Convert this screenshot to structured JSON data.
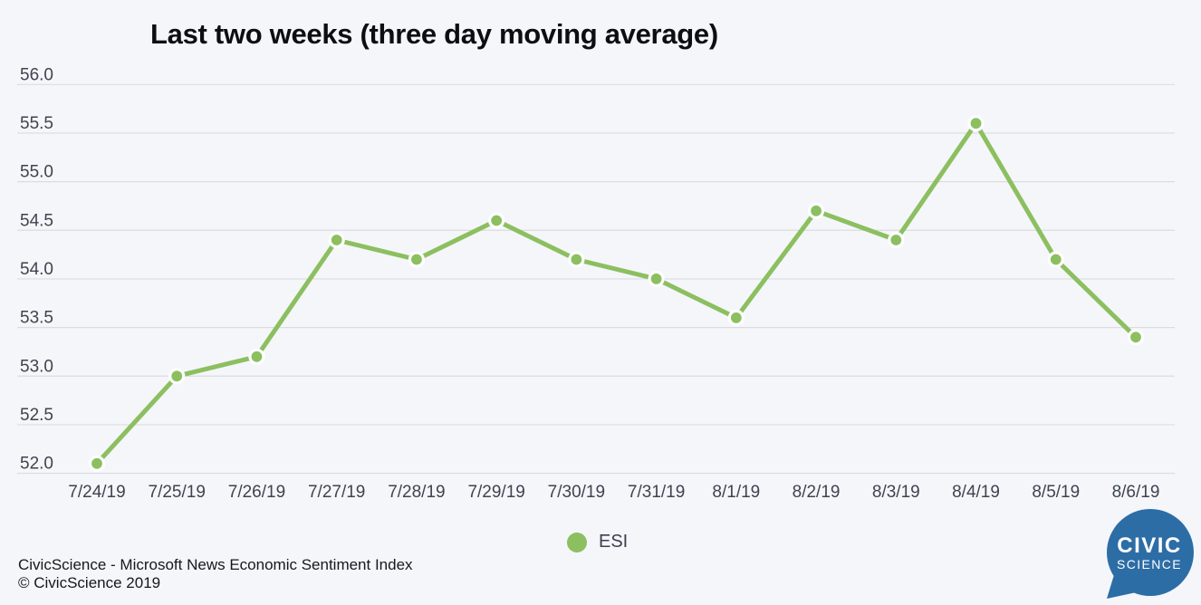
{
  "title": "Last two weeks (three day moving average)",
  "chart_data": {
    "type": "line",
    "title": "Last two weeks (three day moving average)",
    "x": [
      "7/24/19",
      "7/25/19",
      "7/26/19",
      "7/27/19",
      "7/28/19",
      "7/29/19",
      "7/30/19",
      "7/31/19",
      "8/1/19",
      "8/2/19",
      "8/3/19",
      "8/4/19",
      "8/5/19",
      "8/6/19"
    ],
    "series": [
      {
        "name": "ESI",
        "values": [
          52.1,
          53.0,
          53.2,
          54.4,
          54.2,
          54.6,
          54.2,
          54.0,
          53.6,
          54.7,
          54.4,
          55.6,
          54.2,
          53.4
        ]
      }
    ],
    "xlabel": "",
    "ylabel": "",
    "ylim": [
      52.0,
      56.0
    ],
    "yticks": [
      56.0,
      55.5,
      55.0,
      54.5,
      54.0,
      53.5,
      53.0,
      52.5,
      52.0
    ],
    "ytick_labels": [
      "56.0",
      "55.5",
      "55.0",
      "54.5",
      "54.0",
      "53.5",
      "53.0",
      "52.5",
      "52.0"
    ],
    "grid": "horizontal",
    "legend_position": "bottom-center",
    "line_color": "#8cbf60",
    "marker": "circle",
    "marker_outline": "#ffffff",
    "gridline_color": "#dadce1",
    "tick_label_color": "#3d4450",
    "background_color": "#f5f6f9"
  },
  "legend": {
    "label": "ESI",
    "color": "#8cbf60"
  },
  "footer": {
    "line1": "CivicScience - Microsoft News Economic Sentiment Index",
    "line2": "© CivicScience 2019"
  },
  "logo": {
    "line1": "CIVIC",
    "line2": "SCIENCE",
    "color": "#2d6da6"
  }
}
